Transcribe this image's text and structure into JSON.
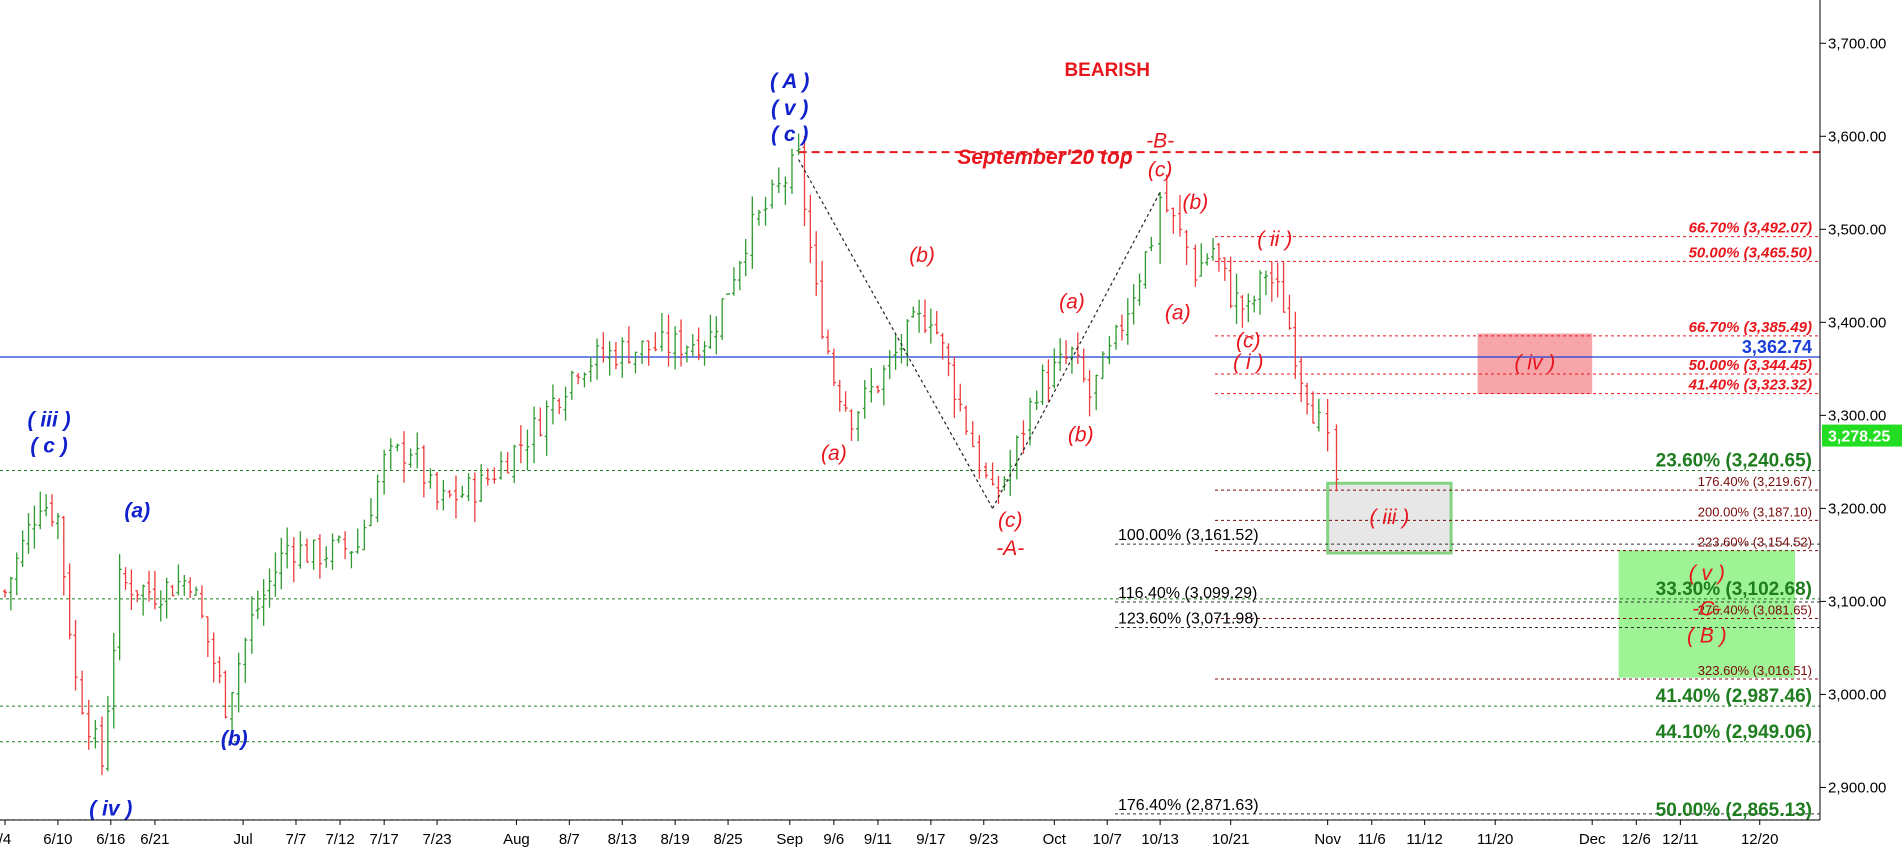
{
  "chart_data": {
    "type": "candlestick",
    "title": "",
    "xlabel": "",
    "ylabel": "",
    "ylim": [
      2865,
      3725
    ],
    "date_range": [
      "2020-06-04",
      "2020-12-24"
    ],
    "y_ticks": [
      {
        "value": 2900,
        "label": "2,900.00"
      },
      {
        "value": 3000,
        "label": "3,000.00"
      },
      {
        "value": 3100,
        "label": "3,100.00"
      },
      {
        "value": 3200,
        "label": "3,200.00"
      },
      {
        "value": 3300,
        "label": "3,300.00"
      },
      {
        "value": 3400,
        "label": "3,400.00"
      },
      {
        "value": 3500,
        "label": "3,500.00"
      },
      {
        "value": 3600,
        "label": "3,600.00"
      },
      {
        "value": 3700,
        "label": "3,700.00"
      }
    ],
    "x_ticks": [
      {
        "date": "2020-06-04",
        "label": "/4"
      },
      {
        "date": "2020-06-10",
        "label": "6/10"
      },
      {
        "date": "2020-06-16",
        "label": "6/16"
      },
      {
        "date": "2020-06-21",
        "label": "6/21"
      },
      {
        "date": "2020-07-01",
        "label": "Jul"
      },
      {
        "date": "2020-07-07",
        "label": "7/7"
      },
      {
        "date": "2020-07-12",
        "label": "7/12"
      },
      {
        "date": "2020-07-17",
        "label": "7/17"
      },
      {
        "date": "2020-07-23",
        "label": "7/23"
      },
      {
        "date": "2020-08-01",
        "label": "Aug"
      },
      {
        "date": "2020-08-07",
        "label": "8/7"
      },
      {
        "date": "2020-08-13",
        "label": "8/13"
      },
      {
        "date": "2020-08-19",
        "label": "8/19"
      },
      {
        "date": "2020-08-25",
        "label": "8/25"
      },
      {
        "date": "2020-09-01",
        "label": "Sep"
      },
      {
        "date": "2020-09-06",
        "label": "9/6"
      },
      {
        "date": "2020-09-11",
        "label": "9/11"
      },
      {
        "date": "2020-09-17",
        "label": "9/17"
      },
      {
        "date": "2020-09-23",
        "label": "9/23"
      },
      {
        "date": "2020-10-01",
        "label": "Oct"
      },
      {
        "date": "2020-10-07",
        "label": "10/7"
      },
      {
        "date": "2020-10-13",
        "label": "10/13"
      },
      {
        "date": "2020-10-21",
        "label": "10/21"
      },
      {
        "date": "2020-11-01",
        "label": "Nov"
      },
      {
        "date": "2020-11-06",
        "label": "11/6"
      },
      {
        "date": "2020-11-12",
        "label": "11/12"
      },
      {
        "date": "2020-11-20",
        "label": "11/20"
      },
      {
        "date": "2020-12-01",
        "label": "Dec"
      },
      {
        "date": "2020-12-06",
        "label": "12/6"
      },
      {
        "date": "2020-12-11",
        "label": "12/11"
      },
      {
        "date": "2020-12-20",
        "label": "12/20"
      }
    ],
    "price_anchors": [
      {
        "date": "2020-06-04",
        "close": 3110
      },
      {
        "date": "2020-06-08",
        "close": 3210
      },
      {
        "date": "2020-06-10",
        "close": 3190
      },
      {
        "date": "2020-06-12",
        "close": 3015
      },
      {
        "date": "2020-06-15",
        "close": 2925
      },
      {
        "date": "2020-06-17",
        "close": 3120
      },
      {
        "date": "2020-06-21",
        "close": 3110
      },
      {
        "date": "2020-06-25",
        "close": 3125
      },
      {
        "date": "2020-06-29",
        "close": 2990
      },
      {
        "date": "2020-07-02",
        "close": 3080
      },
      {
        "date": "2020-07-06",
        "close": 3160
      },
      {
        "date": "2020-07-09",
        "close": 3150
      },
      {
        "date": "2020-07-14",
        "close": 3160
      },
      {
        "date": "2020-07-17",
        "close": 3250
      },
      {
        "date": "2020-07-20",
        "close": 3265
      },
      {
        "date": "2020-07-23",
        "close": 3205
      },
      {
        "date": "2020-07-28",
        "close": 3225
      },
      {
        "date": "2020-08-03",
        "close": 3285
      },
      {
        "date": "2020-08-08",
        "close": 3355
      },
      {
        "date": "2020-08-13",
        "close": 3370
      },
      {
        "date": "2020-08-19",
        "close": 3375
      },
      {
        "date": "2020-08-23",
        "close": 3385
      },
      {
        "date": "2020-08-27",
        "close": 3490
      },
      {
        "date": "2020-09-02",
        "close": 3575
      },
      {
        "date": "2020-09-04",
        "close": 3430
      },
      {
        "date": "2020-09-06",
        "close": 3340
      },
      {
        "date": "2020-09-08",
        "close": 3300
      },
      {
        "date": "2020-09-11",
        "close": 3335
      },
      {
        "date": "2020-09-15",
        "close": 3395
      },
      {
        "date": "2020-09-17",
        "close": 3410
      },
      {
        "date": "2020-09-21",
        "close": 3290
      },
      {
        "date": "2020-09-24",
        "close": 3210
      },
      {
        "date": "2020-09-26",
        "close": 3245
      },
      {
        "date": "2020-09-29",
        "close": 3330
      },
      {
        "date": "2020-10-03",
        "close": 3365
      },
      {
        "date": "2020-10-05",
        "close": 3320
      },
      {
        "date": "2020-10-08",
        "close": 3380
      },
      {
        "date": "2020-10-12",
        "close": 3490
      },
      {
        "date": "2020-10-13",
        "close": 3535
      },
      {
        "date": "2020-10-16",
        "close": 3480
      },
      {
        "date": "2020-10-17",
        "close": 3455
      },
      {
        "date": "2020-10-19",
        "close": 3480
      },
      {
        "date": "2020-10-21",
        "close": 3430
      },
      {
        "date": "2020-10-23",
        "close": 3410
      },
      {
        "date": "2020-10-25",
        "close": 3455
      },
      {
        "date": "2020-10-27",
        "close": 3420
      },
      {
        "date": "2020-10-29",
        "close": 3345
      },
      {
        "date": "2020-10-31",
        "close": 3290
      },
      {
        "date": "2020-11-01",
        "close": 3265
      },
      {
        "date": "2020-11-02",
        "close": 3230
      }
    ],
    "horizontal_line": {
      "value": 3362.74,
      "label": "3,362.74",
      "color": "#1a3fd8"
    },
    "current_price": {
      "value": 3278.25,
      "label": "3,278.25",
      "color": "#22dd22"
    },
    "september_top": {
      "value": 3583,
      "label": "September'20 top",
      "color": "#e8161c"
    },
    "fib_levels": [
      {
        "value": 3492.07,
        "label": "66.70% (3,492.07)",
        "group": "red"
      },
      {
        "value": 3465.5,
        "label": "50.00% (3,465.50)",
        "group": "red"
      },
      {
        "value": 3385.49,
        "label": "66.70% (3,385.49)",
        "group": "red"
      },
      {
        "value": 3344.45,
        "label": "50.00% (3,344.45)",
        "group": "red"
      },
      {
        "value": 3323.32,
        "label": "41.40% (3,323.32)",
        "group": "red"
      },
      {
        "value": 3219.67,
        "label": "176.40% (3,219.67)",
        "group": "dark"
      },
      {
        "value": 3187.1,
        "label": "200.00% (3,187.10)",
        "group": "dark"
      },
      {
        "value": 3154.52,
        "label": "223.60% (3,154.52)",
        "group": "dark"
      },
      {
        "value": 3081.65,
        "label": "276.40% (3,081.65)",
        "group": "dark"
      },
      {
        "value": 3016.51,
        "label": "323.60% (3,016.51)",
        "group": "dark"
      },
      {
        "value": 3161.52,
        "label": "100.00% (3,161.52)",
        "group": "black"
      },
      {
        "value": 3099.29,
        "label": "116.40% (3,099.29)",
        "group": "black"
      },
      {
        "value": 3071.98,
        "label": "123.60% (3,071.98)",
        "group": "black"
      },
      {
        "value": 2871.63,
        "label": "176.40% (2,871.63)",
        "group": "black"
      },
      {
        "value": 3240.65,
        "label": "23.60% (3,240.65)",
        "group": "green"
      },
      {
        "value": 3102.68,
        "label": "33.30% (3,102.68)",
        "group": "green"
      },
      {
        "value": 2987.46,
        "label": "41.40% (2,987.46)",
        "group": "green"
      },
      {
        "value": 2949.06,
        "label": "44.10% (2,949.06)",
        "group": "green"
      },
      {
        "value": 2865.13,
        "label": "50.00% (2,865.13)",
        "group": "green"
      }
    ],
    "zones": [
      {
        "label": "( iv )",
        "date_from": "2020-11-18",
        "date_to": "2020-12-01",
        "value_from": 3323,
        "value_to": 3388,
        "color": "#f6a0a4"
      },
      {
        "label": "( iii )",
        "date_from": "2020-11-01",
        "date_to": "2020-11-15",
        "value_from": 3152,
        "value_to": 3227,
        "color": "#e6e6e6"
      },
      {
        "label": "( v )",
        "date_from": "2020-12-04",
        "date_to": "2020-12-24",
        "value_from": 3018,
        "value_to": 3155,
        "color": "#99f28f"
      }
    ],
    "annotations": [
      {
        "text": "BEARISH",
        "date": "2020-10-07",
        "value": 3665,
        "style": "title"
      },
      {
        "text": "( A )",
        "date": "2020-09-01",
        "value": 3652,
        "style": "blue"
      },
      {
        "text": "( v )",
        "date": "2020-09-01",
        "value": 3623,
        "style": "blue"
      },
      {
        "text": "( c )",
        "date": "2020-09-01",
        "value": 3595,
        "style": "blue"
      },
      {
        "text": "( iii )",
        "date": "2020-06-09",
        "value": 3288,
        "style": "blue"
      },
      {
        "text": "( c )",
        "date": "2020-06-09",
        "value": 3260,
        "style": "blue"
      },
      {
        "text": "(a)",
        "date": "2020-06-19",
        "value": 3190,
        "style": "blue"
      },
      {
        "text": "(b)",
        "date": "2020-06-30",
        "value": 2945,
        "style": "blue"
      },
      {
        "text": "( iv )",
        "date": "2020-06-16",
        "value": 2870,
        "style": "blue"
      },
      {
        "text": "(a)",
        "date": "2020-09-06",
        "value": 3252,
        "style": "red"
      },
      {
        "text": "(b)",
        "date": "2020-09-16",
        "value": 3465,
        "style": "red"
      },
      {
        "text": "(c)",
        "date": "2020-09-26",
        "value": 3180,
        "style": "red"
      },
      {
        "text": "-A-",
        "date": "2020-09-26",
        "value": 3150,
        "style": "red"
      },
      {
        "text": "(a)",
        "date": "2020-10-03",
        "value": 3415,
        "style": "red"
      },
      {
        "text": "(b)",
        "date": "2020-10-04",
        "value": 3272,
        "style": "red"
      },
      {
        "text": "-B-",
        "date": "2020-10-13",
        "value": 3588,
        "style": "red"
      },
      {
        "text": "(c)",
        "date": "2020-10-13",
        "value": 3557,
        "style": "red"
      },
      {
        "text": "(b)",
        "date": "2020-10-17",
        "value": 3522,
        "style": "red"
      },
      {
        "text": "(a)",
        "date": "2020-10-15",
        "value": 3403,
        "style": "red"
      },
      {
        "text": "( ii )",
        "date": "2020-10-26",
        "value": 3482,
        "style": "red"
      },
      {
        "text": "(c)",
        "date": "2020-10-23",
        "value": 3373,
        "style": "red"
      },
      {
        "text": "( i )",
        "date": "2020-10-23",
        "value": 3350,
        "style": "red"
      },
      {
        "text": "-C-",
        "date": "2020-12-14",
        "value": 3085,
        "style": "red"
      },
      {
        "text": "( B )",
        "date": "2020-12-14",
        "value": 3056,
        "style": "red"
      }
    ],
    "trend_lines": [
      {
        "from": {
          "date": "2020-09-02",
          "value": 3575
        },
        "to": {
          "date": "2020-09-24",
          "value": 3200
        }
      },
      {
        "from": {
          "date": "2020-09-24",
          "value": 3200
        },
        "to": {
          "date": "2020-10-13",
          "value": 3540
        }
      }
    ],
    "colors": {
      "up": "#2f9a2f",
      "down": "#ee3b3b",
      "grid": "#1e7d1e",
      "fib_red": "#e8161c",
      "fib_dark": "#7a0b0b"
    },
    "grid": false,
    "legend": "none"
  }
}
